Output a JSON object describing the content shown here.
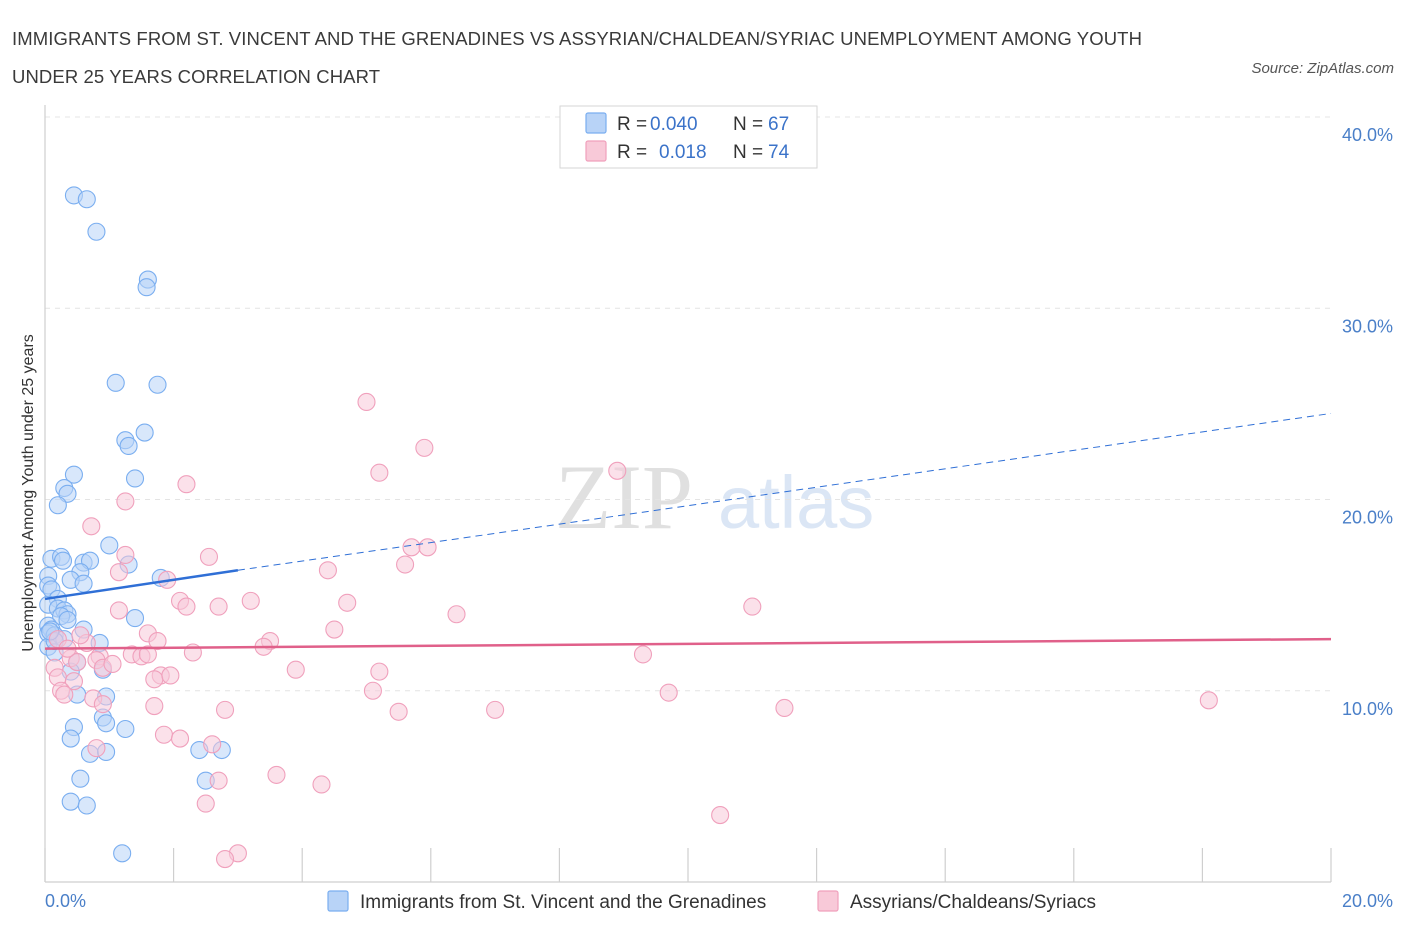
{
  "title": "IMMIGRANTS FROM ST. VINCENT AND THE GRENADINES VS ASSYRIAN/CHALDEAN/SYRIAC UNEMPLOYMENT AMONG YOUTH UNDER 25 YEARS CORRELATION CHART",
  "source": "Source: ZipAtlas.com",
  "watermark": {
    "zip": "ZIP",
    "atlas": "atlas"
  },
  "chart_data": {
    "type": "scatter",
    "xlabel": "",
    "ylabel": "Unemployment Among Youth under 25 years",
    "xlim": [
      0,
      20
    ],
    "ylim": [
      0,
      40
    ],
    "x_tick_labels": [
      "0.0%",
      "20.0%"
    ],
    "y_ticks": [
      10,
      20,
      30,
      40
    ],
    "y_tick_labels": [
      "10.0%",
      "20.0%",
      "30.0%",
      "40.0%"
    ],
    "grid": true,
    "legend_position": "top-center",
    "series": [
      {
        "name": "Immigrants from St. Vincent and the Grenadines",
        "color": "#7aaef0",
        "fill": "#b8d3f7",
        "line_color": "#2f6fd6",
        "R": "0.040",
        "N": "67",
        "trend": {
          "x0": 0.0,
          "y0": 14.8,
          "x1": 3.0,
          "y1": 16.3,
          "dash_x1": 20.0,
          "dash_y1": 24.5
        },
        "points": [
          [
            0.45,
            35.9
          ],
          [
            0.65,
            35.7
          ],
          [
            0.8,
            34.0
          ],
          [
            1.6,
            31.5
          ],
          [
            1.58,
            31.1
          ],
          [
            1.1,
            26.1
          ],
          [
            1.75,
            26.0
          ],
          [
            1.25,
            23.1
          ],
          [
            1.55,
            23.5
          ],
          [
            1.3,
            22.8
          ],
          [
            0.45,
            21.3
          ],
          [
            1.4,
            21.1
          ],
          [
            0.3,
            20.6
          ],
          [
            0.35,
            20.3
          ],
          [
            0.2,
            19.7
          ],
          [
            0.1,
            16.9
          ],
          [
            0.25,
            17.0
          ],
          [
            0.28,
            16.8
          ],
          [
            0.6,
            16.7
          ],
          [
            0.7,
            16.8
          ],
          [
            1.0,
            17.6
          ],
          [
            1.3,
            16.6
          ],
          [
            0.05,
            16.0
          ],
          [
            0.55,
            16.2
          ],
          [
            0.4,
            15.8
          ],
          [
            0.6,
            15.6
          ],
          [
            1.8,
            15.9
          ],
          [
            0.05,
            15.5
          ],
          [
            0.1,
            15.3
          ],
          [
            0.2,
            14.8
          ],
          [
            0.05,
            14.5
          ],
          [
            0.2,
            14.3
          ],
          [
            0.3,
            14.2
          ],
          [
            0.35,
            14.0
          ],
          [
            0.25,
            13.9
          ],
          [
            0.35,
            13.7
          ],
          [
            0.05,
            13.4
          ],
          [
            0.1,
            13.2
          ],
          [
            0.05,
            13.0
          ],
          [
            0.15,
            12.9
          ],
          [
            0.3,
            12.7
          ],
          [
            0.6,
            13.2
          ],
          [
            0.85,
            12.5
          ],
          [
            0.05,
            12.3
          ],
          [
            0.15,
            12.0
          ],
          [
            1.4,
            13.8
          ],
          [
            0.5,
            11.5
          ],
          [
            0.9,
            11.1
          ],
          [
            0.4,
            11.0
          ],
          [
            0.95,
            9.7
          ],
          [
            0.5,
            9.8
          ],
          [
            0.9,
            8.6
          ],
          [
            0.95,
            8.3
          ],
          [
            1.25,
            8.0
          ],
          [
            0.45,
            8.1
          ],
          [
            0.4,
            7.5
          ],
          [
            0.7,
            6.7
          ],
          [
            0.95,
            6.8
          ],
          [
            2.4,
            6.9
          ],
          [
            2.75,
            6.9
          ],
          [
            0.55,
            5.4
          ],
          [
            2.5,
            5.3
          ],
          [
            0.4,
            4.2
          ],
          [
            0.65,
            4.0
          ],
          [
            1.2,
            1.5
          ],
          [
            0.15,
            12.6
          ],
          [
            0.08,
            13.1
          ]
        ]
      },
      {
        "name": "Assyrians/Chaldeans/Syriacs",
        "color": "#f0a0bc",
        "fill": "#f8c9d8",
        "line_color": "#e0608a",
        "R": "0.018",
        "N": "74",
        "trend": {
          "x0": 0.0,
          "y0": 12.2,
          "x1": 20.0,
          "y1": 12.7
        },
        "points": [
          [
            5.0,
            25.1
          ],
          [
            5.9,
            22.7
          ],
          [
            5.2,
            21.4
          ],
          [
            8.9,
            21.5
          ],
          [
            2.2,
            20.8
          ],
          [
            1.25,
            19.9
          ],
          [
            0.72,
            18.6
          ],
          [
            5.7,
            17.5
          ],
          [
            5.95,
            17.5
          ],
          [
            2.55,
            17.0
          ],
          [
            1.25,
            17.1
          ],
          [
            1.15,
            16.2
          ],
          [
            4.4,
            16.3
          ],
          [
            5.6,
            16.6
          ],
          [
            1.9,
            15.8
          ],
          [
            2.1,
            14.7
          ],
          [
            2.2,
            14.4
          ],
          [
            2.7,
            14.4
          ],
          [
            3.2,
            14.7
          ],
          [
            4.7,
            14.6
          ],
          [
            1.15,
            14.2
          ],
          [
            6.4,
            14.0
          ],
          [
            11.0,
            14.4
          ],
          [
            1.6,
            13.0
          ],
          [
            1.75,
            12.6
          ],
          [
            4.5,
            13.2
          ],
          [
            3.5,
            12.6
          ],
          [
            3.4,
            12.3
          ],
          [
            2.3,
            12.0
          ],
          [
            1.35,
            11.9
          ],
          [
            0.85,
            11.8
          ],
          [
            0.4,
            11.7
          ],
          [
            0.5,
            11.5
          ],
          [
            0.8,
            11.6
          ],
          [
            1.5,
            11.8
          ],
          [
            1.6,
            11.9
          ],
          [
            9.3,
            11.9
          ],
          [
            3.9,
            11.1
          ],
          [
            5.2,
            11.0
          ],
          [
            1.8,
            10.8
          ],
          [
            1.7,
            10.6
          ],
          [
            1.95,
            10.8
          ],
          [
            0.15,
            11.2
          ],
          [
            0.2,
            10.7
          ],
          [
            0.45,
            10.5
          ],
          [
            0.25,
            10.0
          ],
          [
            0.3,
            9.8
          ],
          [
            0.75,
            9.6
          ],
          [
            5.1,
            10.0
          ],
          [
            9.7,
            9.9
          ],
          [
            0.9,
            9.3
          ],
          [
            1.7,
            9.2
          ],
          [
            2.8,
            9.0
          ],
          [
            5.5,
            8.9
          ],
          [
            7.0,
            9.0
          ],
          [
            11.5,
            9.1
          ],
          [
            18.1,
            9.5
          ],
          [
            1.85,
            7.7
          ],
          [
            2.1,
            7.5
          ],
          [
            2.6,
            7.2
          ],
          [
            0.8,
            7.0
          ],
          [
            3.6,
            5.6
          ],
          [
            2.7,
            5.3
          ],
          [
            4.3,
            5.1
          ],
          [
            2.5,
            4.1
          ],
          [
            10.5,
            3.5
          ],
          [
            3.0,
            1.5
          ],
          [
            2.8,
            1.2
          ],
          [
            0.2,
            12.7
          ],
          [
            0.35,
            12.2
          ],
          [
            0.65,
            12.5
          ],
          [
            0.9,
            11.2
          ],
          [
            1.05,
            11.4
          ],
          [
            0.55,
            12.9
          ]
        ]
      }
    ]
  }
}
